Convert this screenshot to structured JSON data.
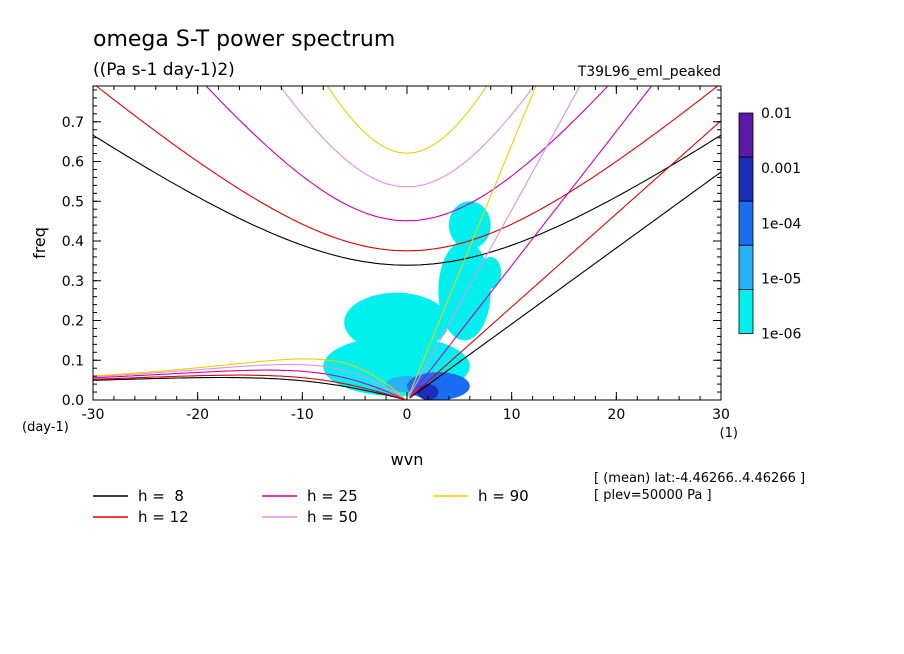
{
  "chart_data": {
    "type": "heatmap",
    "title": "omega S-T power spectrum",
    "subtitle": "((Pa s-1 day-1)2)",
    "experiment_label": "T39L96_eml_peaked",
    "xlabel": "wvn",
    "ylabel": "freq",
    "x_unit": "(1)",
    "y_unit": "(day-1)",
    "xlim": [
      -30,
      30
    ],
    "ylim": [
      0,
      0.79
    ],
    "x_ticks": [
      -30,
      -20,
      -10,
      0,
      10,
      20,
      30
    ],
    "x_tick_labels": [
      "-30",
      "-20",
      "-10",
      "0",
      "10",
      "20",
      "30"
    ],
    "y_ticks": [
      0,
      0.1,
      0.2,
      0.3,
      0.4,
      0.5,
      0.6,
      0.7
    ],
    "y_tick_labels": [
      "0.0",
      "0.1",
      "0.2",
      "0.3",
      "0.4",
      "0.5",
      "0.6",
      "0.7"
    ],
    "grid": false,
    "colorbar": {
      "labels": [
        "0.01",
        "0.001",
        "1e-04",
        "1e-05",
        "1e-06"
      ],
      "colors": [
        "#5a1aa8",
        "#1a2eb8",
        "#1a6cf0",
        "#29b0f5",
        "#00f0f0"
      ]
    },
    "contour_patches": [
      {
        "level": "1e-06",
        "color": "#00f0f0",
        "x": [
          -8,
          6
        ],
        "y": [
          0.01,
          0.16
        ]
      },
      {
        "level": "1e-06",
        "color": "#00f0f0",
        "x": [
          -6,
          4
        ],
        "y": [
          0.12,
          0.27
        ]
      },
      {
        "level": "1e-06",
        "color": "#00f0f0",
        "x": [
          3,
          8
        ],
        "y": [
          0.15,
          0.4
        ]
      },
      {
        "level": "1e-06",
        "color": "#00f0f0",
        "x": [
          4,
          8
        ],
        "y": [
          0.38,
          0.5
        ]
      },
      {
        "level": "1e-06",
        "color": "#00f0f0",
        "x": [
          7,
          9
        ],
        "y": [
          0.28,
          0.36
        ]
      },
      {
        "level": "1e-05",
        "color": "#29b0f5",
        "x": [
          -2,
          2
        ],
        "y": [
          0.02,
          0.06
        ]
      },
      {
        "level": "1e-04",
        "color": "#1a6cf0",
        "x": [
          0,
          6
        ],
        "y": [
          0.0,
          0.07
        ]
      },
      {
        "level": "0.001",
        "color": "#1a2eb8",
        "x": [
          1,
          3
        ],
        "y": [
          0.0,
          0.04
        ]
      }
    ],
    "legend_placement": "bottom",
    "series": [
      {
        "name": "h =  8",
        "h": 8,
        "color": "#000000"
      },
      {
        "name": "h = 12",
        "h": 12,
        "color": "#e00000"
      },
      {
        "name": "h = 25",
        "h": 25,
        "color": "#d000b0"
      },
      {
        "name": "h = 50",
        "h": 50,
        "color": "#e090e0"
      },
      {
        "name": "h = 90",
        "h": 90,
        "color": "#e8d000"
      }
    ],
    "annotations": [
      "[ (mean) lat:-4.46266..4.46266 ]",
      "[ plev=50000 Pa ]"
    ]
  }
}
